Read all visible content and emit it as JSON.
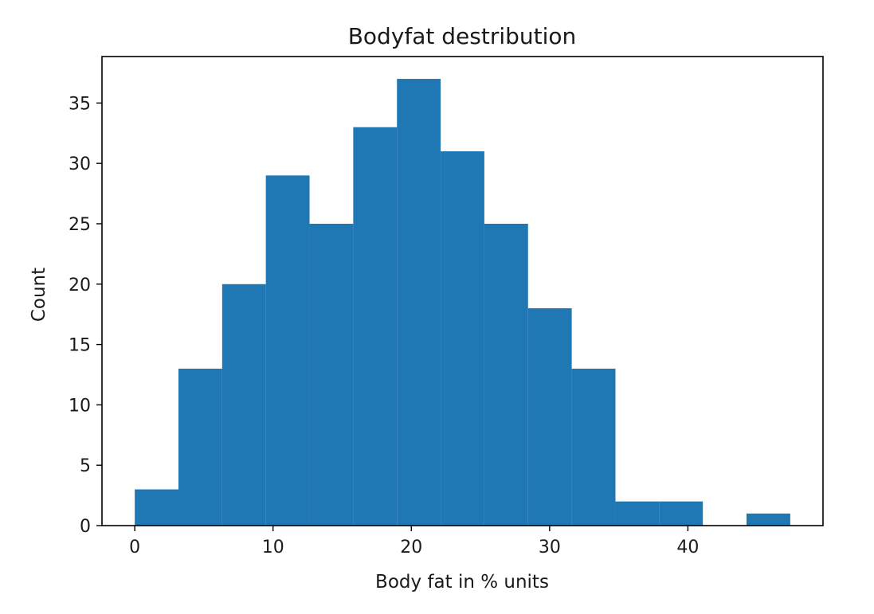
{
  "chart_data": {
    "type": "bar",
    "subtype": "histogram",
    "title": "Bodyfat destribution",
    "xlabel": "Body fat in % units",
    "ylabel": "Count",
    "bin_edges": [
      0,
      3.16,
      6.32,
      9.48,
      12.64,
      15.8,
      18.96,
      22.12,
      25.28,
      28.44,
      31.6,
      34.76,
      37.92,
      41.08,
      44.24,
      47.4
    ],
    "values": [
      3,
      13,
      20,
      29,
      25,
      33,
      37,
      31,
      25,
      18,
      13,
      2,
      2,
      0,
      1
    ],
    "xlim": [
      -2.37,
      49.77
    ],
    "ylim": [
      0,
      38.85
    ],
    "xticks": [
      0,
      10,
      20,
      30,
      40
    ],
    "yticks": [
      0,
      5,
      10,
      15,
      20,
      25,
      30,
      35
    ],
    "grid": false,
    "bar_color": "#1f77b4"
  }
}
